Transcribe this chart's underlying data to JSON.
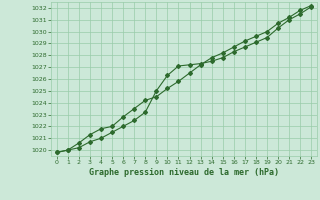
{
  "title": "Graphe pression niveau de la mer (hPa)",
  "x_ticks": [
    0,
    1,
    2,
    3,
    4,
    5,
    6,
    7,
    8,
    9,
    10,
    11,
    12,
    13,
    14,
    15,
    16,
    17,
    18,
    19,
    20,
    21,
    22,
    23
  ],
  "ylim": [
    1019.5,
    1032.5
  ],
  "xlim": [
    -0.5,
    23.5
  ],
  "yticks": [
    1020,
    1021,
    1022,
    1023,
    1024,
    1025,
    1026,
    1027,
    1028,
    1029,
    1030,
    1031,
    1032
  ],
  "line1_x": [
    0,
    1,
    2,
    3,
    4,
    5,
    6,
    7,
    8,
    9,
    10,
    11,
    12,
    13,
    14,
    15,
    16,
    17,
    18,
    19,
    20,
    21,
    22,
    23
  ],
  "line1_y": [
    1019.8,
    1020.0,
    1020.2,
    1020.7,
    1021.0,
    1021.5,
    1022.0,
    1022.5,
    1023.2,
    1025.0,
    1026.3,
    1027.1,
    1027.2,
    1027.3,
    1027.5,
    1027.8,
    1028.3,
    1028.7,
    1029.1,
    1029.5,
    1030.3,
    1031.0,
    1031.5,
    1032.1
  ],
  "line2_x": [
    0,
    1,
    2,
    3,
    4,
    5,
    6,
    7,
    8,
    9,
    10,
    11,
    12,
    13,
    14,
    15,
    16,
    17,
    18,
    19,
    20,
    21,
    22,
    23
  ],
  "line2_y": [
    1019.8,
    1020.0,
    1020.6,
    1021.3,
    1021.8,
    1022.0,
    1022.8,
    1023.5,
    1024.2,
    1024.5,
    1025.2,
    1025.8,
    1026.5,
    1027.2,
    1027.8,
    1028.2,
    1028.7,
    1029.2,
    1029.6,
    1030.0,
    1030.7,
    1031.2,
    1031.8,
    1032.2
  ],
  "line_color": "#2d6a2d",
  "bg_color": "#cce8d8",
  "grid_color": "#99ccaa",
  "title_color": "#2d6a2d",
  "marker": "D",
  "marker_size": 2,
  "line_width": 0.8
}
